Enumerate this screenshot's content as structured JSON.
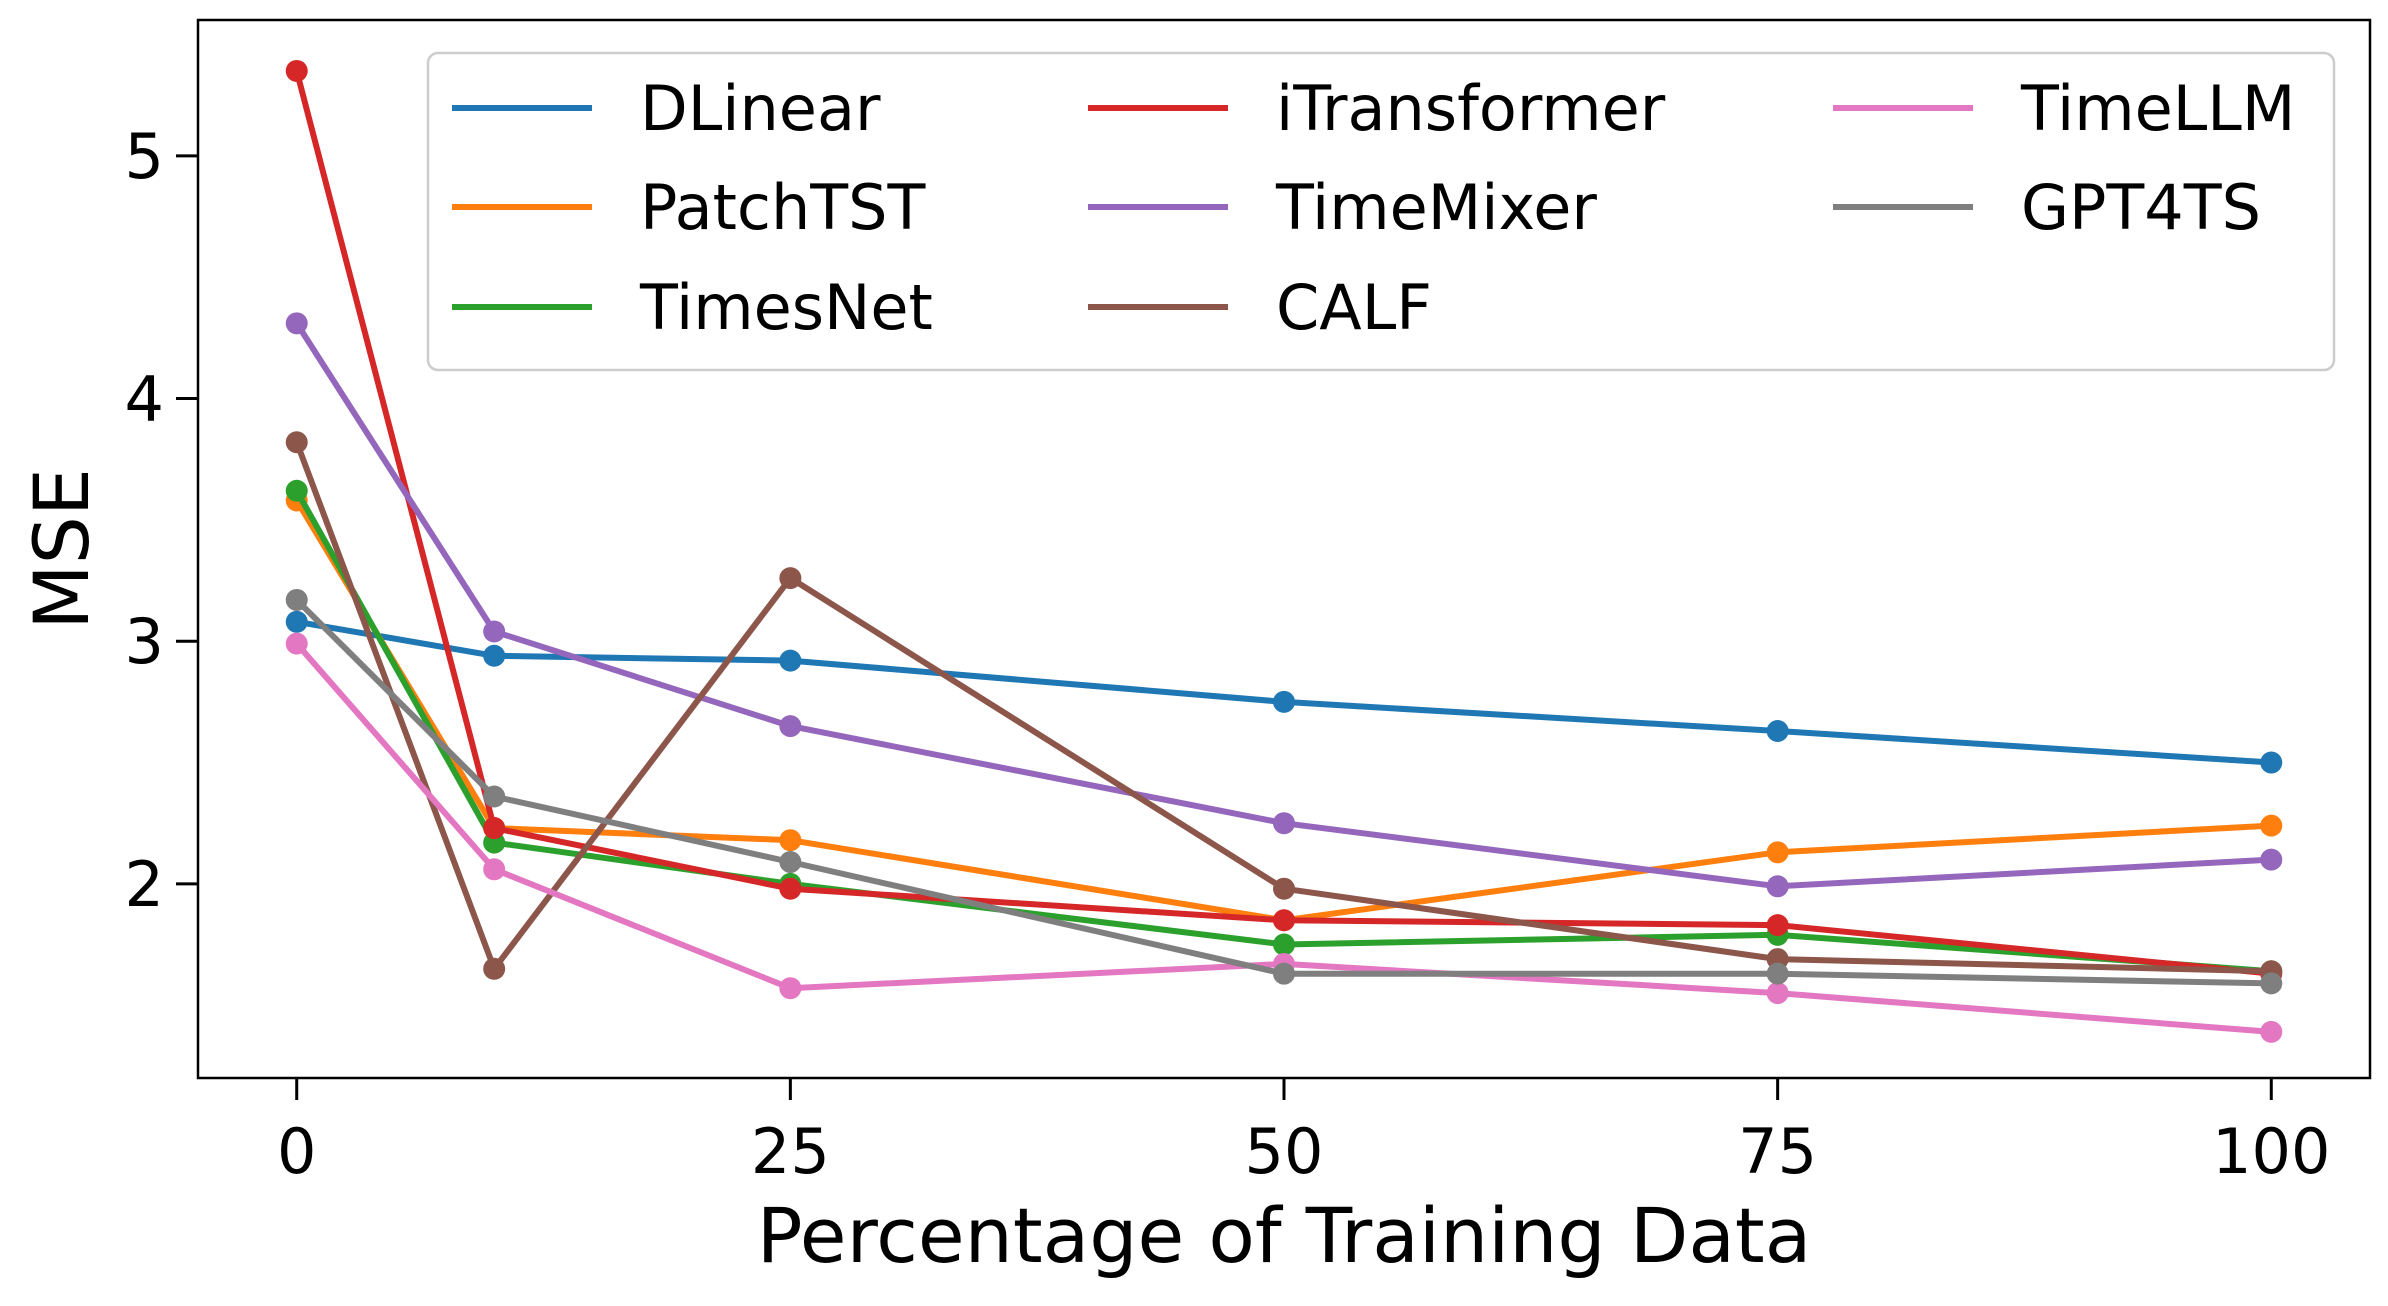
{
  "chart_data": {
    "type": "line",
    "title": "",
    "xlabel": "Percentage of Training Data",
    "ylabel": "MSE",
    "x": [
      0,
      10,
      25,
      50,
      75,
      100
    ],
    "x_ticks": [
      0,
      25,
      50,
      75,
      100
    ],
    "x_tick_labels": [
      "0",
      "25",
      "50",
      "75",
      "100"
    ],
    "xlim": [
      -5,
      105
    ],
    "y_ticks": [
      2,
      3,
      4,
      5
    ],
    "y_tick_labels": [
      "2",
      "3",
      "4",
      "5"
    ],
    "ylim": [
      1.2,
      5.56
    ],
    "grid": false,
    "legend": {
      "position": "top-right",
      "columns": 3
    },
    "series": [
      {
        "name": "DLinear",
        "color": "#1f77b4",
        "values": [
          3.08,
          2.94,
          2.92,
          2.75,
          2.63,
          2.5
        ]
      },
      {
        "name": "PatchTST",
        "color": "#ff7f0e",
        "values": [
          3.58,
          2.23,
          2.18,
          1.85,
          2.13,
          2.24
        ]
      },
      {
        "name": "TimesNet",
        "color": "#2ca02c",
        "values": [
          3.62,
          2.17,
          2.0,
          1.75,
          1.79,
          1.64
        ]
      },
      {
        "name": "iTransformer",
        "color": "#d62728",
        "values": [
          5.35,
          2.23,
          1.98,
          1.85,
          1.83,
          1.63
        ]
      },
      {
        "name": "TimeMixer",
        "color": "#9467bd",
        "values": [
          4.31,
          3.04,
          2.65,
          2.25,
          1.99,
          2.1
        ]
      },
      {
        "name": "CALF",
        "color": "#8c564b",
        "values": [
          3.82,
          1.65,
          3.26,
          1.98,
          1.69,
          1.64
        ]
      },
      {
        "name": "TimeLLM",
        "color": "#e377c2",
        "values": [
          2.99,
          2.06,
          1.57,
          1.67,
          1.55,
          1.39
        ]
      },
      {
        "name": "GPT4TS",
        "color": "#7f7f7f",
        "values": [
          3.17,
          2.36,
          2.09,
          1.63,
          1.63,
          1.59
        ]
      }
    ]
  }
}
